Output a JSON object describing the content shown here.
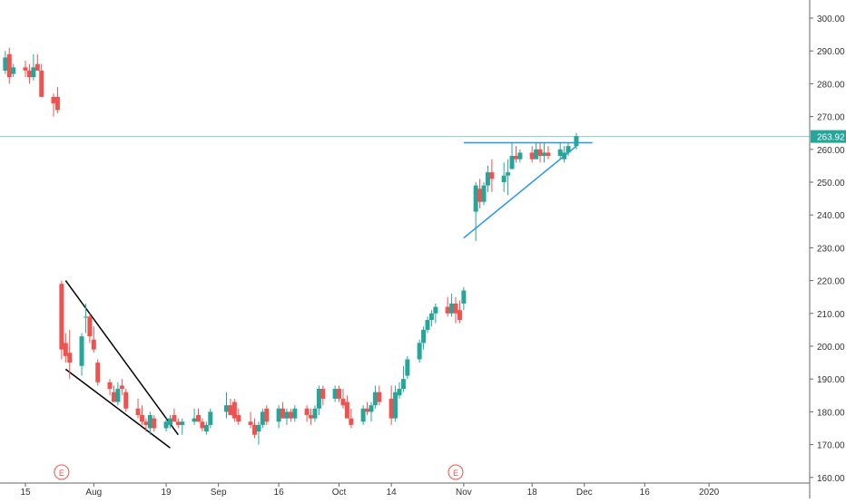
{
  "colors": {
    "up": "#26a69a",
    "down": "#ef5350",
    "price_line": "#26a69a",
    "trendline_blue": "#2196f3",
    "trendline_black": "#000000",
    "axis_text": "#333333",
    "earnings": "#ef5350"
  },
  "price_axis": {
    "labels": [
      "300.00",
      "290.00",
      "280.00",
      "270.00",
      "260.00",
      "250.00",
      "240.00",
      "230.00",
      "220.00",
      "210.00",
      "200.00",
      "190.00",
      "180.00",
      "170.00",
      "160.00"
    ]
  },
  "time_axis": {
    "labels": [
      "15",
      "Aug",
      "19",
      "Sep",
      "16",
      "Oct",
      "14",
      "Nov",
      "18",
      "Dec",
      "16",
      "2020"
    ]
  },
  "last_price": {
    "label": "263.92"
  },
  "earnings_markers": [
    {
      "label": "E"
    },
    {
      "label": "E"
    }
  ],
  "chart_data": {
    "type": "candlestick",
    "title": "",
    "ylim": [
      158,
      305
    ],
    "grid": false,
    "last_price": 263.92,
    "candles": [
      {
        "d": "Jul 10",
        "o": 284,
        "h": 290,
        "l": 283,
        "c": 288
      },
      {
        "d": "Jul 11",
        "o": 289,
        "h": 291,
        "l": 280,
        "c": 282
      },
      {
        "d": "Jul 12",
        "o": 283,
        "h": 286,
        "l": 282,
        "c": 285
      },
      {
        "d": "Jul 15",
        "o": 285,
        "h": 287,
        "l": 282,
        "c": 284
      },
      {
        "d": "Jul 16",
        "o": 284,
        "h": 286,
        "l": 280,
        "c": 282
      },
      {
        "d": "Jul 17",
        "o": 282,
        "h": 289,
        "l": 281,
        "c": 285
      },
      {
        "d": "Jul 18",
        "o": 286,
        "h": 289,
        "l": 284,
        "c": 284
      },
      {
        "d": "Jul 19",
        "o": 284,
        "h": 286,
        "l": 276,
        "c": 276
      },
      {
        "d": "Jul 22",
        "o": 276,
        "h": 277,
        "l": 270,
        "c": 274
      },
      {
        "d": "Jul 23",
        "o": 276,
        "h": 279,
        "l": 271,
        "c": 272
      },
      {
        "d": "Jul 24",
        "o": 219,
        "h": 220,
        "l": 196,
        "c": 199
      },
      {
        "d": "Jul 25",
        "o": 201,
        "h": 204,
        "l": 195,
        "c": 197
      },
      {
        "d": "Jul 26",
        "o": 198,
        "h": 205,
        "l": 190,
        "c": 195
      },
      {
        "d": "Jul 29",
        "o": 194,
        "h": 204,
        "l": 191,
        "c": 203
      },
      {
        "d": "Jul 30",
        "o": 209,
        "h": 213,
        "l": 204,
        "c": 209
      },
      {
        "d": "Jul 31",
        "o": 209,
        "h": 210,
        "l": 201,
        "c": 203
      },
      {
        "d": "Aug 1",
        "o": 202,
        "h": 206,
        "l": 198,
        "c": 199
      },
      {
        "d": "Aug 2",
        "o": 195,
        "h": 196,
        "l": 188,
        "c": 189
      },
      {
        "d": "Aug 5",
        "o": 189,
        "h": 190,
        "l": 185,
        "c": 187
      },
      {
        "d": "Aug 6",
        "o": 186,
        "h": 188,
        "l": 183,
        "c": 183
      },
      {
        "d": "Aug 7",
        "o": 183,
        "h": 189,
        "l": 182,
        "c": 187
      },
      {
        "d": "Aug 8",
        "o": 188,
        "h": 190,
        "l": 185,
        "c": 187
      },
      {
        "d": "Aug 9",
        "o": 186,
        "h": 187,
        "l": 180,
        "c": 181
      },
      {
        "d": "Aug 12",
        "o": 181,
        "h": 184,
        "l": 178,
        "c": 179
      },
      {
        "d": "Aug 13",
        "o": 179,
        "h": 182,
        "l": 176,
        "c": 177
      },
      {
        "d": "Aug 14",
        "o": 177,
        "h": 178,
        "l": 174,
        "c": 176
      },
      {
        "d": "Aug 15",
        "o": 175,
        "h": 180,
        "l": 173,
        "c": 179
      },
      {
        "d": "Aug 16",
        "o": 178,
        "h": 179,
        "l": 174,
        "c": 175
      },
      {
        "d": "Aug 19",
        "o": 175,
        "h": 178,
        "l": 174,
        "c": 177
      },
      {
        "d": "Aug 20",
        "o": 176,
        "h": 179,
        "l": 175,
        "c": 178
      },
      {
        "d": "Aug 21",
        "o": 179,
        "h": 181,
        "l": 177,
        "c": 177
      },
      {
        "d": "Aug 22",
        "o": 177,
        "h": 178,
        "l": 175,
        "c": 176
      },
      {
        "d": "Aug 23",
        "o": 176,
        "h": 178,
        "l": 173,
        "c": 177
      },
      {
        "d": "Aug 26",
        "o": 177,
        "h": 181,
        "l": 176,
        "c": 178
      },
      {
        "d": "Aug 27",
        "o": 179,
        "h": 181,
        "l": 177,
        "c": 177
      },
      {
        "d": "Aug 28",
        "o": 177,
        "h": 178,
        "l": 174,
        "c": 175
      },
      {
        "d": "Aug 29",
        "o": 174,
        "h": 177,
        "l": 173,
        "c": 176
      },
      {
        "d": "Aug 30",
        "o": 176,
        "h": 181,
        "l": 175,
        "c": 180
      },
      {
        "d": "Sep 3",
        "o": 180,
        "h": 186,
        "l": 178,
        "c": 182
      },
      {
        "d": "Sep 4",
        "o": 182,
        "h": 184,
        "l": 179,
        "c": 179
      },
      {
        "d": "Sep 5",
        "o": 183,
        "h": 184,
        "l": 177,
        "c": 178
      },
      {
        "d": "Sep 6",
        "o": 179,
        "h": 181,
        "l": 176,
        "c": 177
      },
      {
        "d": "Sep 9",
        "o": 177,
        "h": 180,
        "l": 175,
        "c": 176
      },
      {
        "d": "Sep 10",
        "o": 176,
        "h": 178,
        "l": 172,
        "c": 173
      },
      {
        "d": "Sep 11",
        "o": 174,
        "h": 177,
        "l": 170,
        "c": 176
      },
      {
        "d": "Sep 12",
        "o": 176,
        "h": 181,
        "l": 175,
        "c": 180
      },
      {
        "d": "Sep 13",
        "o": 181,
        "h": 182,
        "l": 176,
        "c": 177
      },
      {
        "d": "Sep 16",
        "o": 177,
        "h": 182,
        "l": 175,
        "c": 181
      },
      {
        "d": "Sep 17",
        "o": 181,
        "h": 183,
        "l": 178,
        "c": 178
      },
      {
        "d": "Sep 18",
        "o": 178,
        "h": 181,
        "l": 176,
        "c": 180
      },
      {
        "d": "Sep 19",
        "o": 180,
        "h": 181,
        "l": 177,
        "c": 178
      },
      {
        "d": "Sep 20",
        "o": 178,
        "h": 182,
        "l": 177,
        "c": 181
      },
      {
        "d": "Sep 23",
        "o": 181,
        "h": 182,
        "l": 177,
        "c": 179
      },
      {
        "d": "Sep 24",
        "o": 179,
        "h": 181,
        "l": 176,
        "c": 178
      },
      {
        "d": "Sep 25",
        "o": 178,
        "h": 182,
        "l": 177,
        "c": 181
      },
      {
        "d": "Sep 26",
        "o": 181,
        "h": 188,
        "l": 179,
        "c": 187
      },
      {
        "d": "Sep 27",
        "o": 187,
        "h": 188,
        "l": 182,
        "c": 184
      },
      {
        "d": "Sep 30",
        "o": 184,
        "h": 188,
        "l": 183,
        "c": 187
      },
      {
        "d": "Oct 1",
        "o": 187,
        "h": 188,
        "l": 183,
        "c": 184
      },
      {
        "d": "Oct 2",
        "o": 184,
        "h": 187,
        "l": 181,
        "c": 182
      },
      {
        "d": "Oct 3",
        "o": 183,
        "h": 185,
        "l": 178,
        "c": 178
      },
      {
        "d": "Oct 4",
        "o": 178,
        "h": 181,
        "l": 175,
        "c": 176
      },
      {
        "d": "Oct 7",
        "o": 177,
        "h": 182,
        "l": 176,
        "c": 181
      },
      {
        "d": "Oct 8",
        "o": 181,
        "h": 183,
        "l": 179,
        "c": 180
      },
      {
        "d": "Oct 9",
        "o": 180,
        "h": 183,
        "l": 177,
        "c": 182
      },
      {
        "d": "Oct 10",
        "o": 182,
        "h": 188,
        "l": 181,
        "c": 186
      },
      {
        "d": "Oct 11",
        "o": 186,
        "h": 188,
        "l": 182,
        "c": 183
      },
      {
        "d": "Oct 14",
        "o": 184,
        "h": 188,
        "l": 176,
        "c": 178
      },
      {
        "d": "Oct 15",
        "o": 178,
        "h": 188,
        "l": 177,
        "c": 186
      },
      {
        "d": "Oct 16",
        "o": 185,
        "h": 189,
        "l": 184,
        "c": 187
      },
      {
        "d": "Oct 17",
        "o": 187,
        "h": 194,
        "l": 186,
        "c": 190
      },
      {
        "d": "Oct 18",
        "o": 191,
        "h": 197,
        "l": 190,
        "c": 196
      },
      {
        "d": "Oct 21",
        "o": 196,
        "h": 202,
        "l": 195,
        "c": 201
      },
      {
        "d": "Oct 22",
        "o": 201,
        "h": 206,
        "l": 199,
        "c": 205
      },
      {
        "d": "Oct 23",
        "o": 205,
        "h": 209,
        "l": 204,
        "c": 208
      },
      {
        "d": "Oct 24",
        "o": 208,
        "h": 211,
        "l": 206,
        "c": 210
      },
      {
        "d": "Oct 25",
        "o": 210,
        "h": 213,
        "l": 207,
        "c": 212
      },
      {
        "d": "Oct 28",
        "o": 212,
        "h": 215,
        "l": 209,
        "c": 210
      },
      {
        "d": "Oct 29",
        "o": 210,
        "h": 216,
        "l": 209,
        "c": 213
      },
      {
        "d": "Oct 30",
        "o": 213,
        "h": 215,
        "l": 207,
        "c": 210
      },
      {
        "d": "Oct 31",
        "o": 211,
        "h": 214,
        "l": 207,
        "c": 208
      },
      {
        "d": "Nov 1",
        "o": 213,
        "h": 218,
        "l": 211,
        "c": 217
      },
      {
        "d": "Nov 4",
        "o": 241,
        "h": 250,
        "l": 232,
        "c": 249
      },
      {
        "d": "Nov 5",
        "o": 248,
        "h": 251,
        "l": 242,
        "c": 244
      },
      {
        "d": "Nov 6",
        "o": 244,
        "h": 250,
        "l": 243,
        "c": 249
      },
      {
        "d": "Nov 7",
        "o": 249,
        "h": 255,
        "l": 247,
        "c": 253
      },
      {
        "d": "Nov 8",
        "o": 253,
        "h": 257,
        "l": 247,
        "c": 251
      },
      {
        "d": "Nov 11",
        "o": 250,
        "h": 256,
        "l": 247,
        "c": 252
      },
      {
        "d": "Nov 12",
        "o": 252,
        "h": 257,
        "l": 246,
        "c": 253
      },
      {
        "d": "Nov 13",
        "o": 254,
        "h": 262,
        "l": 254,
        "c": 258
      },
      {
        "d": "Nov 14",
        "o": 258,
        "h": 261,
        "l": 256,
        "c": 257
      },
      {
        "d": "Nov 15",
        "o": 257,
        "h": 260,
        "l": 256,
        "c": 259
      },
      {
        "d": "Nov 18",
        "o": 259,
        "h": 261,
        "l": 256,
        "c": 257
      },
      {
        "d": "Nov 19",
        "o": 257,
        "h": 262,
        "l": 257,
        "c": 260
      },
      {
        "d": "Nov 20",
        "o": 260,
        "h": 262,
        "l": 256,
        "c": 258
      },
      {
        "d": "Nov 21",
        "o": 258,
        "h": 262,
        "l": 256,
        "c": 259
      },
      {
        "d": "Nov 22",
        "o": 259,
        "h": 261,
        "l": 257,
        "c": 258
      },
      {
        "d": "Nov 25",
        "o": 258,
        "h": 262,
        "l": 257,
        "c": 260
      },
      {
        "d": "Nov 26",
        "o": 257,
        "h": 261,
        "l": 256,
        "c": 259
      },
      {
        "d": "Nov 27",
        "o": 259,
        "h": 262,
        "l": 258,
        "c": 261
      },
      {
        "d": "Nov 29",
        "o": 261,
        "h": 265,
        "l": 260,
        "c": 264
      }
    ],
    "drawings": [
      {
        "name": "wedge-upper",
        "color": "black",
        "from": [
          "Jul 25",
          220
        ],
        "to": [
          "Aug 22",
          173
        ]
      },
      {
        "name": "wedge-lower",
        "color": "black",
        "from": [
          "Jul 25",
          193
        ],
        "to": [
          "Aug 20",
          169
        ]
      },
      {
        "name": "triangle-resistance",
        "color": "blue",
        "from": [
          "Nov 1",
          262
        ],
        "to": [
          "Dec 3",
          262
        ]
      },
      {
        "name": "triangle-support",
        "color": "blue",
        "from": [
          "Nov 1",
          233
        ],
        "to": [
          "Nov 29",
          261
        ]
      }
    ]
  }
}
